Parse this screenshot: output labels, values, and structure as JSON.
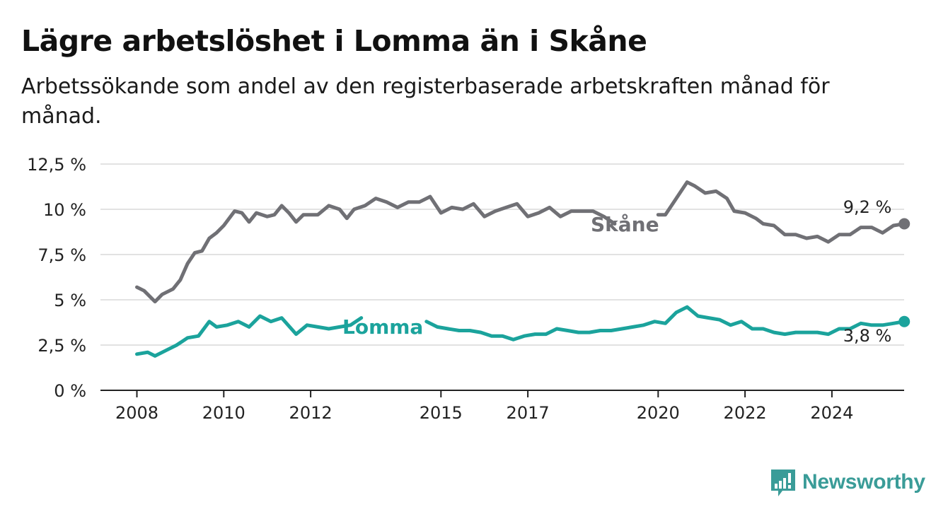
{
  "title": "Lägre arbetslöshet i Lomma än i Skåne",
  "subtitle": "Arbetssökande som andel av den registerbaserade arbetskraften månad för månad.",
  "brand": {
    "name": "Newsworthy",
    "logo_icon": "bar-chart-exclamation-icon",
    "color": "#3a9c98"
  },
  "chart_data": {
    "type": "line",
    "ylim": [
      0,
      12.5
    ],
    "y_ticks": [
      0,
      2.5,
      5,
      7.5,
      10,
      12.5
    ],
    "y_tick_labels": [
      "0 %",
      "2,5 %",
      "5 %",
      "7,5 %",
      "10 %",
      "12,5 %"
    ],
    "x_tick_years": [
      2008,
      2010,
      2012,
      2015,
      2017,
      2020,
      2022,
      2024
    ],
    "x_tick_labels": [
      "2008",
      "2010",
      "2012",
      "2015",
      "2017",
      "2020",
      "2022",
      "2024"
    ],
    "grid": true,
    "series": [
      {
        "name": "Skåne",
        "color": "#707075",
        "end_label": "9,2 %",
        "points": [
          [
            "2008-01",
            5.7
          ],
          [
            "2008-03",
            5.5
          ],
          [
            "2008-06",
            4.9
          ],
          [
            "2008-08",
            5.3
          ],
          [
            "2008-11",
            5.6
          ],
          [
            "2009-01",
            6.1
          ],
          [
            "2009-03",
            7.0
          ],
          [
            "2009-05",
            7.6
          ],
          [
            "2009-07",
            7.7
          ],
          [
            "2009-09",
            8.4
          ],
          [
            "2009-11",
            8.7
          ],
          [
            "2010-01",
            9.1
          ],
          [
            "2010-04",
            9.9
          ],
          [
            "2010-06",
            9.8
          ],
          [
            "2010-08",
            9.3
          ],
          [
            "2010-10",
            9.8
          ],
          [
            "2011-01",
            9.6
          ],
          [
            "2011-03",
            9.7
          ],
          [
            "2011-05",
            10.2
          ],
          [
            "2011-07",
            9.8
          ],
          [
            "2011-09",
            9.3
          ],
          [
            "2011-11",
            9.7
          ],
          [
            "2012-03",
            9.7
          ],
          [
            "2012-06",
            10.2
          ],
          [
            "2012-09",
            10.0
          ],
          [
            "2012-11",
            9.5
          ],
          [
            "2013-01",
            10.0
          ],
          [
            "2013-04",
            10.2
          ],
          [
            "2013-07",
            10.6
          ],
          [
            "2013-10",
            10.4
          ],
          [
            "2014-01",
            10.1
          ],
          [
            "2014-04",
            10.4
          ],
          [
            "2014-07",
            10.4
          ],
          [
            "2014-10",
            10.7
          ],
          [
            "2015-01",
            9.8
          ],
          [
            "2015-04",
            10.1
          ],
          [
            "2015-07",
            10.0
          ],
          [
            "2015-10",
            10.3
          ],
          [
            "2016-01",
            9.6
          ],
          [
            "2016-04",
            9.9
          ],
          [
            "2016-07",
            10.1
          ],
          [
            "2016-10",
            10.3
          ],
          [
            "2017-01",
            9.6
          ],
          [
            "2017-04",
            9.8
          ],
          [
            "2017-07",
            10.1
          ],
          [
            "2017-10",
            9.6
          ],
          [
            "2018-01",
            9.9
          ],
          [
            "2018-04",
            9.9
          ],
          [
            "2018-07",
            9.9
          ],
          [
            "2018-10",
            9.6
          ],
          [
            "2019-01",
            9.2
          ]
        ],
        "points_2": [
          [
            "2020-01",
            9.7
          ],
          [
            "2020-03",
            9.7
          ],
          [
            "2020-06",
            10.6
          ],
          [
            "2020-09",
            11.5
          ],
          [
            "2020-11",
            11.3
          ],
          [
            "2021-02",
            10.9
          ],
          [
            "2021-05",
            11.0
          ],
          [
            "2021-08",
            10.6
          ],
          [
            "2021-10",
            9.9
          ],
          [
            "2022-01",
            9.8
          ],
          [
            "2022-04",
            9.5
          ],
          [
            "2022-06",
            9.2
          ],
          [
            "2022-09",
            9.1
          ],
          [
            "2022-12",
            8.6
          ],
          [
            "2023-03",
            8.6
          ],
          [
            "2023-06",
            8.4
          ],
          [
            "2023-09",
            8.5
          ],
          [
            "2023-12",
            8.2
          ],
          [
            "2024-03",
            8.6
          ],
          [
            "2024-06",
            8.6
          ],
          [
            "2024-09",
            9.0
          ],
          [
            "2024-12",
            9.0
          ],
          [
            "2025-03",
            8.7
          ],
          [
            "2025-06",
            9.1
          ],
          [
            "2025-09",
            9.2
          ]
        ]
      },
      {
        "name": "Lomma",
        "color": "#1ba39c",
        "end_label": "3,8 %",
        "points": [
          [
            "2008-01",
            2.0
          ],
          [
            "2008-04",
            2.1
          ],
          [
            "2008-06",
            1.9
          ],
          [
            "2008-09",
            2.2
          ],
          [
            "2008-12",
            2.5
          ],
          [
            "2009-03",
            2.9
          ],
          [
            "2009-06",
            3.0
          ],
          [
            "2009-09",
            3.8
          ],
          [
            "2009-11",
            3.5
          ],
          [
            "2010-02",
            3.6
          ],
          [
            "2010-05",
            3.8
          ],
          [
            "2010-08",
            3.5
          ],
          [
            "2010-11",
            4.1
          ],
          [
            "2011-02",
            3.8
          ],
          [
            "2011-05",
            4.0
          ],
          [
            "2011-09",
            3.1
          ],
          [
            "2011-12",
            3.6
          ],
          [
            "2012-03",
            3.5
          ],
          [
            "2012-06",
            3.4
          ],
          [
            "2012-09",
            3.5
          ],
          [
            "2012-12",
            3.6
          ],
          [
            "2013-03",
            4.0
          ]
        ],
        "points_2": [
          [
            "2014-09",
            3.8
          ],
          [
            "2014-12",
            3.5
          ],
          [
            "2015-03",
            3.4
          ],
          [
            "2015-06",
            3.3
          ],
          [
            "2015-09",
            3.3
          ],
          [
            "2015-12",
            3.2
          ],
          [
            "2016-03",
            3.0
          ],
          [
            "2016-06",
            3.0
          ],
          [
            "2016-09",
            2.8
          ],
          [
            "2016-12",
            3.0
          ],
          [
            "2017-03",
            3.1
          ],
          [
            "2017-06",
            3.1
          ],
          [
            "2017-09",
            3.4
          ],
          [
            "2017-12",
            3.3
          ],
          [
            "2018-03",
            3.2
          ],
          [
            "2018-06",
            3.2
          ],
          [
            "2018-09",
            3.3
          ],
          [
            "2018-12",
            3.3
          ],
          [
            "2019-03",
            3.4
          ],
          [
            "2019-06",
            3.5
          ],
          [
            "2019-09",
            3.6
          ],
          [
            "2019-12",
            3.8
          ],
          [
            "2020-03",
            3.7
          ],
          [
            "2020-06",
            4.3
          ],
          [
            "2020-09",
            4.6
          ],
          [
            "2020-12",
            4.1
          ],
          [
            "2021-03",
            4.0
          ],
          [
            "2021-06",
            3.9
          ],
          [
            "2021-09",
            3.6
          ],
          [
            "2021-12",
            3.8
          ],
          [
            "2022-03",
            3.4
          ],
          [
            "2022-06",
            3.4
          ],
          [
            "2022-09",
            3.2
          ],
          [
            "2022-12",
            3.1
          ],
          [
            "2023-03",
            3.2
          ],
          [
            "2023-06",
            3.2
          ],
          [
            "2023-09",
            3.2
          ],
          [
            "2023-12",
            3.1
          ],
          [
            "2024-03",
            3.4
          ],
          [
            "2024-06",
            3.4
          ],
          [
            "2024-09",
            3.7
          ],
          [
            "2024-12",
            3.6
          ],
          [
            "2025-03",
            3.6
          ],
          [
            "2025-06",
            3.7
          ],
          [
            "2025-09",
            3.8
          ]
        ]
      }
    ]
  }
}
